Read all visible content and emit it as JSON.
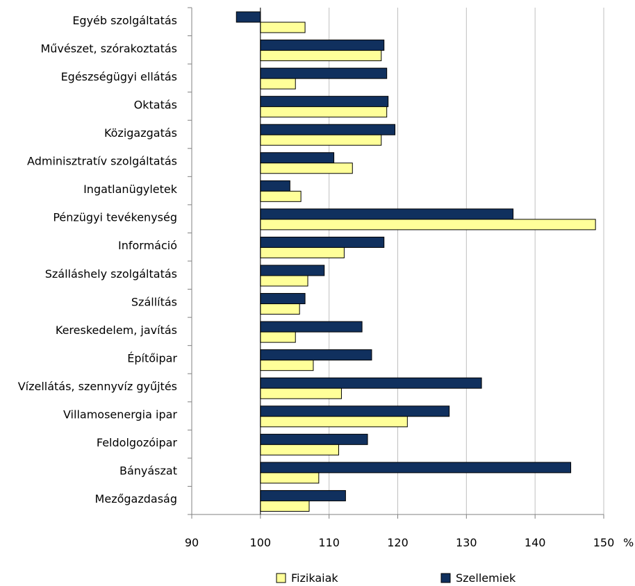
{
  "chart_data": {
    "type": "bar",
    "orientation": "horizontal",
    "title": "",
    "xlabel": "",
    "ylabel": "",
    "unit": "%",
    "baseline": 100,
    "xlim": [
      90,
      150
    ],
    "xticks": [
      90,
      100,
      110,
      120,
      130,
      140,
      150
    ],
    "grid": true,
    "legend": "bottom",
    "categories": [
      "Egyéb szolgáltatás",
      "Művészet, szórakoztatás",
      "Egészségügyi ellátás",
      "Oktatás",
      "Közigazgatás",
      "Adminisztratív szolgáltatás",
      "Ingatlanügyletek",
      "Pénzügyi tevékenység",
      "Információ",
      "Szálláshely szolgáltatás",
      "Szállítás",
      "Kereskedelem, javítás",
      "Építőipar",
      "Vízellátás, szennyvíz gyűjtés",
      "Villamosenergia ipar",
      "Feldolgozóipar",
      "Bányászat",
      "Mezőgazdaság"
    ],
    "series": [
      {
        "name": "Szellemiek",
        "color": "#10305e",
        "values": [
          96.5,
          118.0,
          118.4,
          118.6,
          119.6,
          110.7,
          104.3,
          136.8,
          118.0,
          109.3,
          106.5,
          114.8,
          116.2,
          132.2,
          127.5,
          115.6,
          145.2,
          112.4
        ]
      },
      {
        "name": "Fizikaiak",
        "color": "#ffff99",
        "values": [
          106.5,
          117.6,
          105.1,
          118.4,
          117.6,
          113.4,
          105.9,
          148.8,
          112.2,
          106.9,
          105.7,
          105.1,
          107.7,
          111.8,
          121.4,
          111.4,
          108.5,
          107.1
        ]
      }
    ],
    "legend_order": [
      "Fizikaiak",
      "Szellemiek"
    ]
  }
}
